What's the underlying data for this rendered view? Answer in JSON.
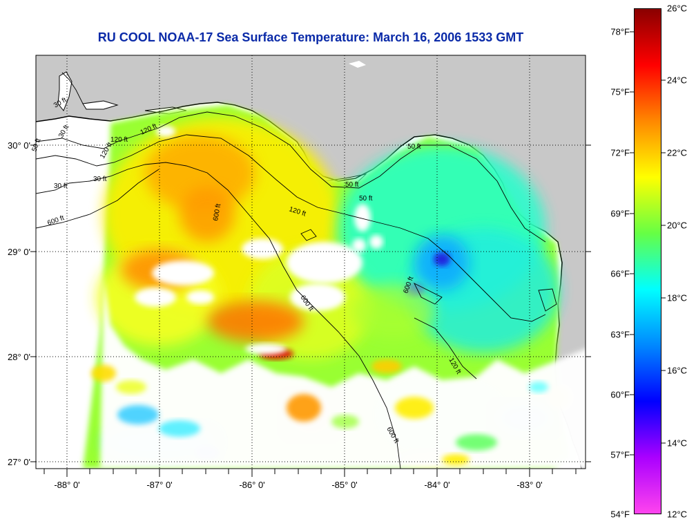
{
  "title": "RU COOL  NOAA-17  Sea Surface Temperature:  March 16, 2006 1533 GMT",
  "lat_labels": [
    "30° 0'",
    "29° 0'",
    "28° 0'",
    "27° 0'"
  ],
  "lon_labels": [
    "-88° 0'",
    "-87° 0'",
    "-86° 0'",
    "-85° 0'",
    "-84° 0'",
    "-83° 0'"
  ],
  "colorbar": {
    "fahrenheit": [
      "78°F",
      "75°F",
      "72°F",
      "69°F",
      "66°F",
      "63°F",
      "60°F",
      "57°F",
      "54°F"
    ],
    "celsius": [
      "26°C",
      "24°C",
      "22°C",
      "20°C",
      "18°C",
      "16°C",
      "14°C",
      "12°C"
    ],
    "colors": [
      "#8a0000",
      "#ff0000",
      "#ff8800",
      "#ffff00",
      "#66ff44",
      "#00ffff",
      "#0088ff",
      "#0000ff",
      "#aa00ff",
      "#ff44ee"
    ]
  },
  "contour_labels": [
    "30 ft",
    "120 ft",
    "30 ft",
    "120 ft",
    "50 ft",
    "120 ft",
    "30 ft",
    "600 ft",
    "30 ft",
    "600 ft",
    "600 ft",
    "120 ft",
    "50 ft",
    "50 ft",
    "50 ft",
    "600 ft",
    "120 ft",
    "600 ft"
  ],
  "colors": {
    "land": "#c8c8c8",
    "cloud": "#ffffff",
    "title": "#0a2aa8"
  }
}
